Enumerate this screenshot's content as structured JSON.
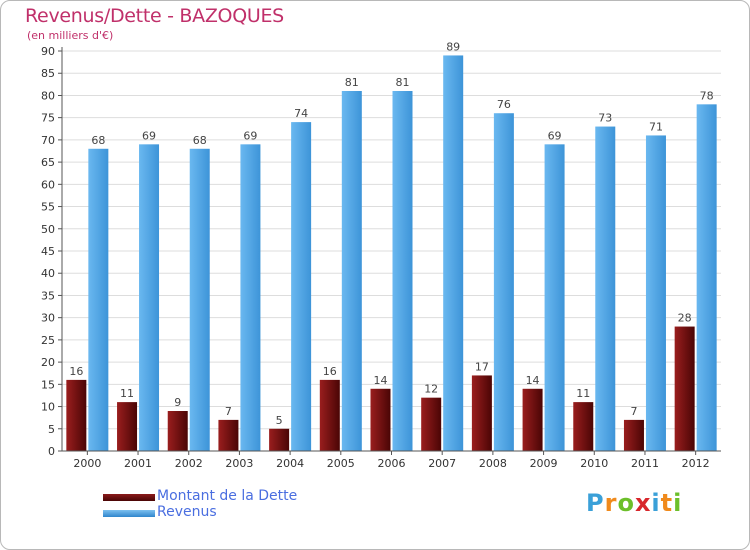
{
  "chart_data": {
    "type": "bar",
    "title": "Revenus/Dette - BAZOQUES",
    "subtitle": "(en milliers d'€)",
    "categories": [
      "2000",
      "2001",
      "2002",
      "2003",
      "2004",
      "2005",
      "2006",
      "2007",
      "2008",
      "2009",
      "2010",
      "2011",
      "2012"
    ],
    "series": [
      {
        "name": "Montant de la Dette",
        "color": "#6b0a0a",
        "values": [
          16,
          11,
          9,
          7,
          5,
          16,
          14,
          12,
          17,
          14,
          11,
          7,
          28
        ]
      },
      {
        "name": "Revenus",
        "color": "#4aa3e8",
        "values": [
          68,
          69,
          68,
          69,
          74,
          81,
          81,
          89,
          76,
          69,
          73,
          71,
          78
        ]
      }
    ],
    "ylim": [
      0,
      90
    ],
    "yticks": [
      0,
      5,
      10,
      15,
      20,
      25,
      30,
      35,
      40,
      45,
      50,
      55,
      60,
      65,
      70,
      75,
      80,
      85,
      90
    ],
    "grid": true,
    "legend_position": "bottom-left"
  },
  "logo": {
    "letters": [
      "P",
      "r",
      "o",
      "x",
      "i",
      "t",
      "i"
    ],
    "colors": [
      "#3aa0d8",
      "#f08a1c",
      "#6cbf2a",
      "#d8262b",
      "#3aa0d8",
      "#f08a1c",
      "#6cbf2a"
    ]
  }
}
